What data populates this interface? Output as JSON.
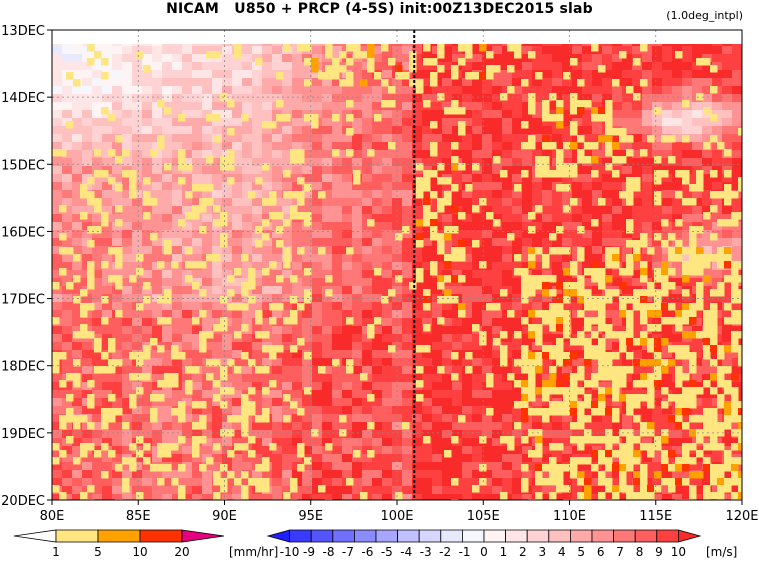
{
  "title": "NICAM   U850 + PRCP (4-5S) init:00Z13DEC2015 slab",
  "subtitle": "(1.0deg_intpl)",
  "chart_data": {
    "type": "heatmap",
    "xaxis": {
      "range": [
        80,
        120
      ],
      "ticks": [
        80,
        85,
        90,
        95,
        100,
        105,
        110,
        115,
        120
      ],
      "tick_labels": [
        "80E",
        "85E",
        "90E",
        "95E",
        "100E",
        "105E",
        "110E",
        "115E",
        "120E"
      ]
    },
    "yaxis": {
      "range": [
        "13DEC",
        "20DEC"
      ],
      "ticks": [
        0,
        1,
        2,
        3,
        4,
        5,
        6,
        7
      ],
      "tick_labels": [
        "13DEC",
        "14DEC",
        "15DEC",
        "16DEC",
        "17DEC",
        "18DEC",
        "19DEC",
        "20DEC"
      ],
      "direction": "time increases downward"
    },
    "grid": true,
    "reference_line_lon": 101,
    "shaded_field": {
      "name": "U850",
      "units": "[m/s]",
      "levels": [
        -10,
        -9,
        -8,
        -7,
        -6,
        -5,
        -4,
        -3,
        -2,
        -1,
        0,
        1,
        2,
        3,
        4,
        5,
        6,
        7,
        8,
        9,
        10
      ],
      "labels": [
        "-10",
        "-9",
        "-8",
        "-7",
        "-6",
        "-5",
        "-4",
        "-3",
        "-2",
        "-1",
        "0",
        "1",
        "2",
        "3",
        "4",
        "5",
        "6",
        "7",
        "8",
        "9",
        "10"
      ],
      "colors": [
        "#1f1fff",
        "#3a3aff",
        "#5555ff",
        "#7070ff",
        "#8b8bff",
        "#a6a6ff",
        "#c0c0ff",
        "#d6d6ff",
        "#e8e8ff",
        "#f6f6ff",
        "#fff4f4",
        "#ffe6e6",
        "#ffd3d3",
        "#ffc0c0",
        "#ffaaaa",
        "#ff9292",
        "#ff7878",
        "#ff5e5e",
        "#ff4040",
        "#f82a2a"
      ]
    },
    "contour_field": {
      "name": "PRCP",
      "units": "[mm/hr]",
      "levels": [
        1,
        5,
        10,
        20
      ],
      "labels": [
        "1",
        "5",
        "10",
        "20"
      ],
      "colors": [
        "#ffffff",
        "#ffe680",
        "#ffa200",
        "#ff3200",
        "#e6007e"
      ]
    }
  }
}
